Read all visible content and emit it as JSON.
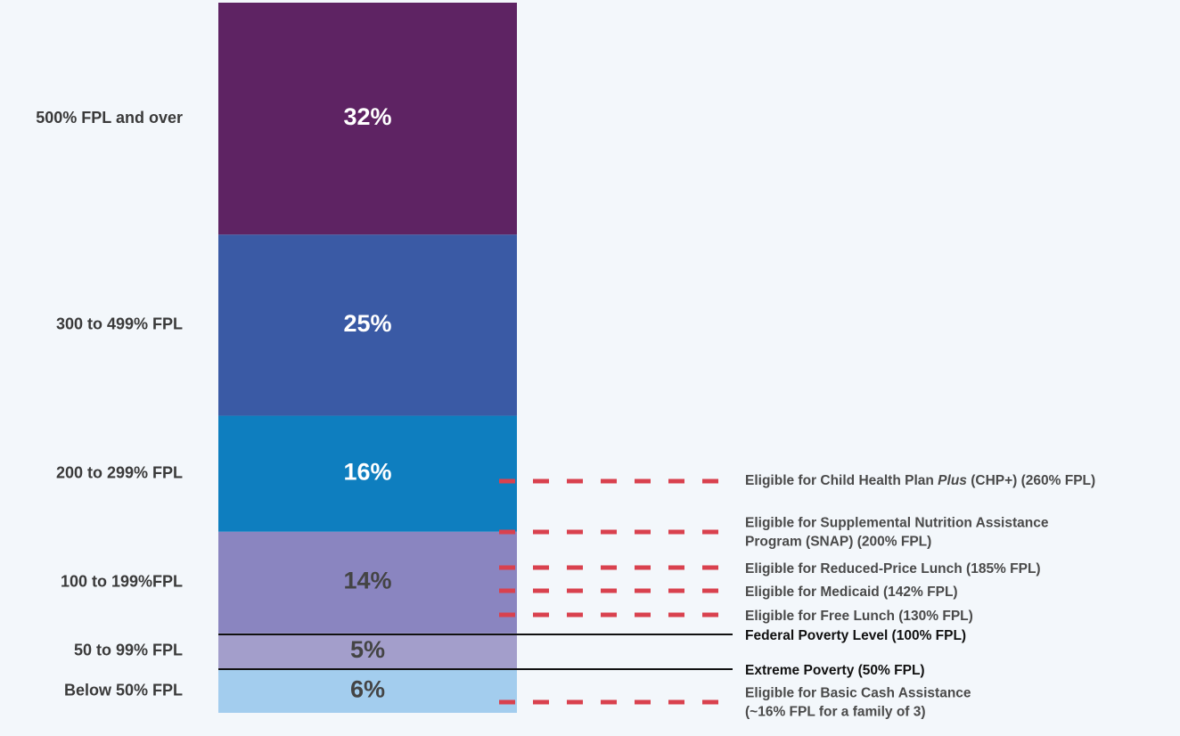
{
  "chart_data": {
    "type": "stacked-bar",
    "categories": [
      "Below 50% FPL",
      "50 to 99% FPL",
      "100 to 199%FPL",
      "200 to 299% FPL",
      "300 to 499% FPL",
      "500% FPL and over"
    ],
    "values": [
      6,
      5,
      14,
      16,
      25,
      32
    ],
    "value_labels": [
      "6%",
      "5%",
      "14%",
      "16%",
      "25%",
      "32%"
    ],
    "colors": [
      "#a3cdee",
      "#a39ecb",
      "#8a85c0",
      "#0e7ebf",
      "#3a5aa5",
      "#5e2363"
    ],
    "label_colors": [
      "#444444",
      "#444444",
      "#444444",
      "#ffffff",
      "#ffffff",
      "#ffffff"
    ],
    "annotations": [
      {
        "lines": [
          "Eligible for Basic Cash Assistance",
          "(~16% FPL for a family of 3)"
        ],
        "style": "dashed"
      },
      {
        "lines": [
          "Extreme Poverty (50% FPL)"
        ],
        "style": "solid"
      },
      {
        "lines": [
          "Federal Poverty Level (100% FPL)"
        ],
        "style": "solid"
      },
      {
        "lines": [
          "Eligible for Free Lunch (130% FPL)"
        ],
        "style": "dashed"
      },
      {
        "lines": [
          "Eligible for Medicaid (142% FPL)"
        ],
        "style": "dashed"
      },
      {
        "lines": [
          "Eligible for Reduced-Price Lunch (185% FPL)"
        ],
        "style": "dashed"
      },
      {
        "lines": [
          "Eligible for Supplemental Nutrition Assistance",
          "Program (SNAP) (200% FPL)"
        ],
        "style": "dashed"
      },
      {
        "parts": [
          "Eligible for Child Health Plan ",
          "Plus",
          " (CHP+) (260% FPL)"
        ],
        "italic_part": 1,
        "style": "dashed"
      }
    ],
    "dash_color": "#d9414e"
  }
}
